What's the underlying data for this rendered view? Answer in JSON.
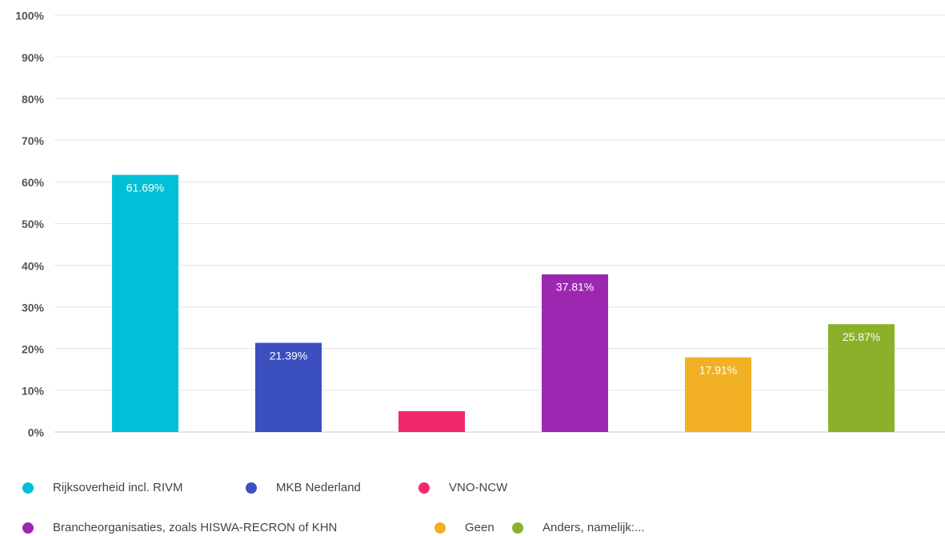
{
  "chart_data": {
    "type": "bar",
    "categories": [
      "Rijksoverheid incl. RIVM",
      "MKB Nederland",
      "VNO-NCW",
      "Brancheorganisaties, zoals HISWA-RECRON of KHN",
      "Geen",
      "Anders, namelijk:..."
    ],
    "values": [
      61.69,
      21.39,
      5,
      37.81,
      17.91,
      25.87
    ],
    "value_labels": [
      "61.69%",
      "21.39%",
      null,
      "37.81%",
      "17.91%",
      "25.87%"
    ],
    "colors": [
      "#00c0d8",
      "#3b4fbf",
      "#f0286a",
      "#9c27b0",
      "#f2b124",
      "#8bb02a"
    ],
    "ylim": [
      0,
      100
    ],
    "yticks": [
      {
        "value": 0,
        "label": "0%"
      },
      {
        "value": 10,
        "label": "10%"
      },
      {
        "value": 20,
        "label": "20%"
      },
      {
        "value": 30,
        "label": "30%"
      },
      {
        "value": 40,
        "label": "40%"
      },
      {
        "value": 50,
        "label": "50%"
      },
      {
        "value": 60,
        "label": "60%"
      },
      {
        "value": 70,
        "label": "70%"
      },
      {
        "value": 80,
        "label": "80%"
      },
      {
        "value": 90,
        "label": "90%"
      },
      {
        "value": 100,
        "label": "100%"
      }
    ],
    "grid": true
  }
}
